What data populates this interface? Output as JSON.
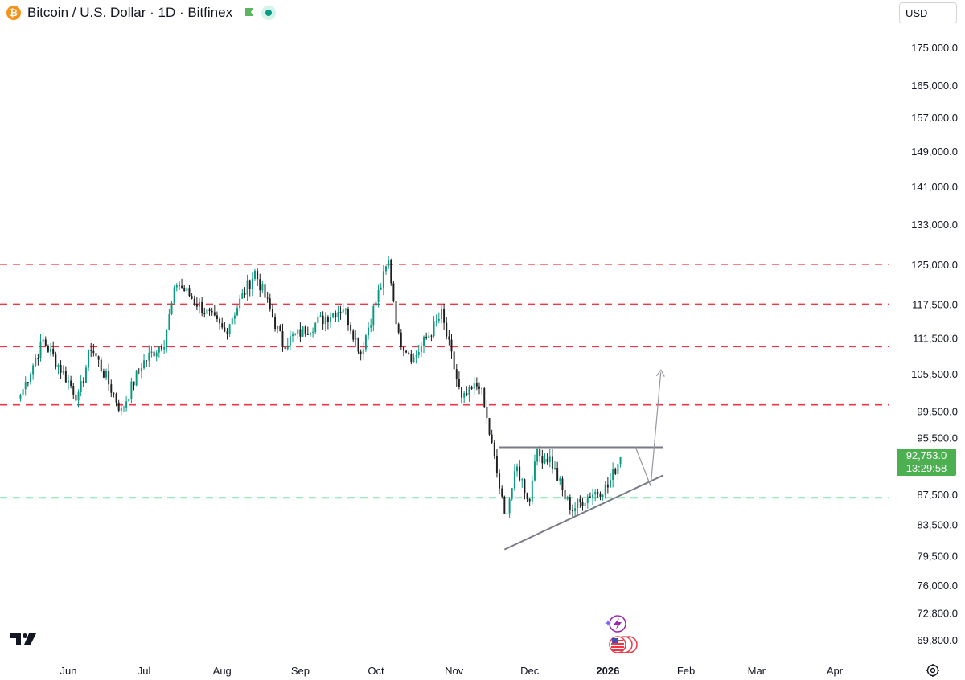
{
  "header": {
    "title": "Bitcoin / U.S. Dollar · 1D · Bitfinex",
    "currency_button": "USD"
  },
  "last_price": {
    "price": "92,753.0",
    "countdown": "13:29:58"
  },
  "colors": {
    "up": "#089981",
    "down": "#1e1e1e",
    "resistance_dashed": "#f23645",
    "support_dashed": "#00c853",
    "trendline": "#787b86",
    "price_label_bg": "#4caf50"
  },
  "icons": [
    "bitcoin-logo-icon",
    "green-flag-icon",
    "live-status-icon",
    "tradingview-logo-icon",
    "settings-gear-icon",
    "lightning-event-icon",
    "us-economic-events-icon"
  ],
  "chart_data": {
    "type": "candlestick",
    "y_axis_ticks": [
      "175,000.0",
      "165,000.0",
      "157,000.0",
      "149,000.0",
      "141,000.0",
      "133,000.0",
      "125,000.0",
      "117,500.0",
      "111,500.0",
      "105,500.0",
      "99,500.0",
      "95,500.0",
      "87,500.0",
      "83,500.0",
      "79,500.0",
      "76,000.0",
      "72,800.0",
      "69,800.0"
    ],
    "y_axis_tick_values": [
      175000,
      165000,
      157000,
      149000,
      141000,
      133000,
      125000,
      117500,
      111500,
      105500,
      99500,
      95500,
      87500,
      83500,
      79500,
      76000,
      72800,
      69800
    ],
    "y_scale": "log",
    "x_axis_ticks": [
      "Jun",
      "Jul",
      "Aug",
      "Sep",
      "Oct",
      "Nov",
      "Dec",
      "2026",
      "Feb",
      "Mar",
      "Apr"
    ],
    "x_axis_tick_dates": [
      "2025-06-01",
      "2025-07-01",
      "2025-08-01",
      "2025-09-01",
      "2025-10-01",
      "2025-11-01",
      "2025-12-01",
      "2026-01-01",
      "2026-02-01",
      "2026-03-01",
      "2026-04-01"
    ],
    "date_range": [
      "2025-05-13",
      "2026-01-06"
    ],
    "key_points": [
      {
        "date": "2025-05-13",
        "price": 102000
      },
      {
        "date": "2025-05-22",
        "price": 111000
      },
      {
        "date": "2025-06-05",
        "price": 101500
      },
      {
        "date": "2025-06-10",
        "price": 110000
      },
      {
        "date": "2025-06-22",
        "price": 99500
      },
      {
        "date": "2025-06-30",
        "price": 107000
      },
      {
        "date": "2025-07-09",
        "price": 111000
      },
      {
        "date": "2025-07-14",
        "price": 121500
      },
      {
        "date": "2025-08-02",
        "price": 112500
      },
      {
        "date": "2025-08-14",
        "price": 123500
      },
      {
        "date": "2025-08-25",
        "price": 110500
      },
      {
        "date": "2025-09-18",
        "price": 117000
      },
      {
        "date": "2025-09-25",
        "price": 109000
      },
      {
        "date": "2025-10-06",
        "price": 125500
      },
      {
        "date": "2025-10-10",
        "price": 111500
      },
      {
        "date": "2025-10-16",
        "price": 108000
      },
      {
        "date": "2025-10-27",
        "price": 115500
      },
      {
        "date": "2025-11-04",
        "price": 101000
      },
      {
        "date": "2025-11-11",
        "price": 104000
      },
      {
        "date": "2025-11-21",
        "price": 84500
      },
      {
        "date": "2025-11-26",
        "price": 91000
      },
      {
        "date": "2025-12-01",
        "price": 86500
      },
      {
        "date": "2025-12-03",
        "price": 93000
      },
      {
        "date": "2025-12-09",
        "price": 92500
      },
      {
        "date": "2025-12-15",
        "price": 87000
      },
      {
        "date": "2025-12-18",
        "price": 85500
      },
      {
        "date": "2025-12-25",
        "price": 87500
      },
      {
        "date": "2026-01-01",
        "price": 88500
      },
      {
        "date": "2026-01-06",
        "price": 92753
      }
    ],
    "horizontal_levels": [
      {
        "price": 125000,
        "style": "dashed",
        "color": "red"
      },
      {
        "price": 117500,
        "style": "dashed",
        "color": "red"
      },
      {
        "price": 110000,
        "style": "dashed",
        "color": "red"
      },
      {
        "price": 100500,
        "style": "dashed",
        "color": "red"
      },
      {
        "price": 87000,
        "style": "dashed",
        "color": "green"
      }
    ],
    "drawings": {
      "triangle_top": {
        "from": [
          "2025-11-19",
          94100
        ],
        "to": [
          "2026-01-23",
          94100
        ]
      },
      "triangle_bottom": {
        "from": [
          "2025-11-21",
          80300
        ],
        "to": [
          "2026-01-23",
          90100
        ]
      },
      "projection_path": [
        [
          "2026-01-12",
          94100
        ],
        [
          "2026-01-18",
          88600
        ],
        [
          "2026-01-22",
          105700
        ]
      ]
    }
  }
}
